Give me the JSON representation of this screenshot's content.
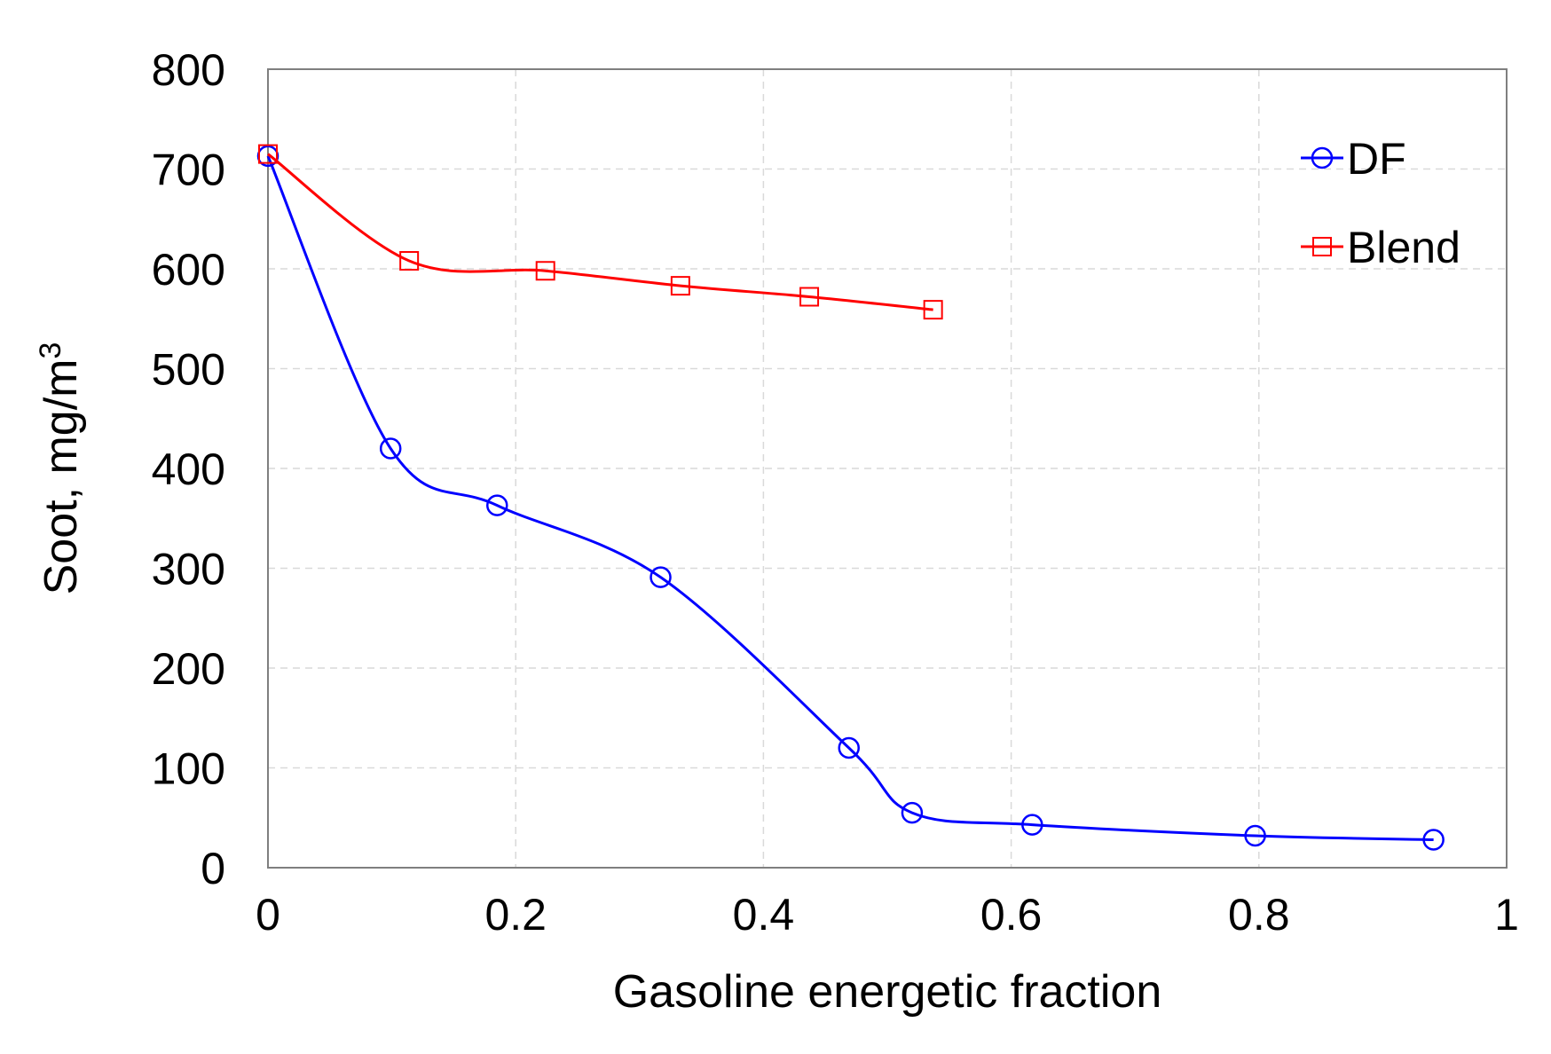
{
  "chart_data": {
    "type": "line",
    "title": "",
    "xlabel": "Gasoline energetic fraction",
    "ylabel": "Soot, mg/m",
    "ylabel_superscript": "3",
    "xlim": [
      0,
      1
    ],
    "ylim": [
      0,
      800
    ],
    "xticks": [
      "0",
      "0.2",
      "0.4",
      "0.6",
      "0.8",
      "1"
    ],
    "xtick_values": [
      0,
      0.2,
      0.4,
      0.6,
      0.8,
      1
    ],
    "yticks": [
      "0",
      "100",
      "200",
      "300",
      "400",
      "500",
      "600",
      "700",
      "800"
    ],
    "ytick_values": [
      0,
      100,
      200,
      300,
      400,
      500,
      600,
      700,
      800
    ],
    "grid": true,
    "legend_position": "top-right",
    "series": [
      {
        "name": "DF",
        "color": "#0000ff",
        "marker": "circle",
        "x": [
          0.0,
          0.099,
          0.185,
          0.317,
          0.469,
          0.52,
          0.617,
          0.797,
          0.941
        ],
        "y": [
          713,
          420,
          363,
          291,
          120,
          55,
          43,
          32,
          28
        ]
      },
      {
        "name": "Blend",
        "color": "#ff0000",
        "marker": "square",
        "x": [
          0.0,
          0.114,
          0.224,
          0.333,
          0.437,
          0.537
        ],
        "y": [
          715,
          608,
          598,
          583,
          572,
          559
        ]
      }
    ]
  }
}
